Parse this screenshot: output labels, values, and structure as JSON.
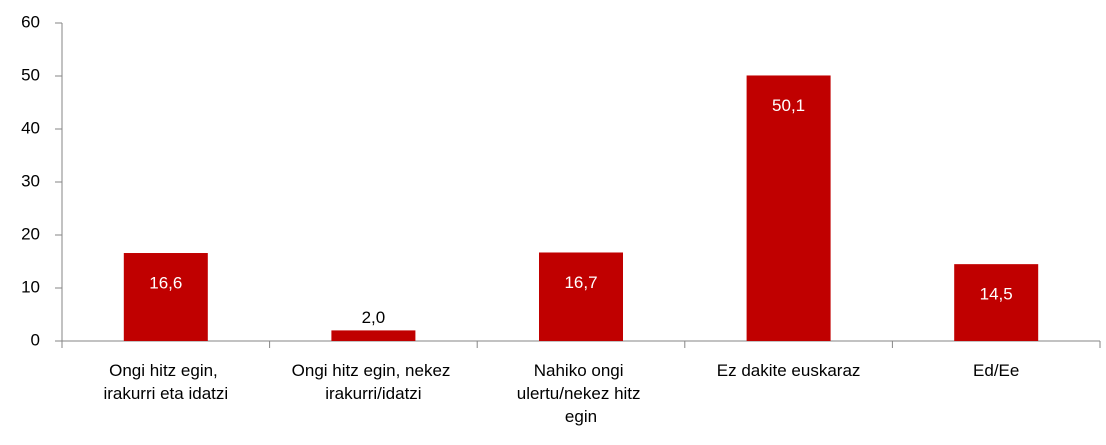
{
  "chart_data": {
    "type": "bar",
    "categories": [
      "Ongi hitz egin, irakurri eta idatzi",
      "Ongi hitz egin, nekez irakurri/idatzi",
      "Nahiko ongi ulertu/nekez hitz egin",
      "Ez dakite euskaraz",
      "Ed/Ee"
    ],
    "values": [
      16.6,
      2.0,
      16.7,
      50.1,
      14.5
    ],
    "value_labels": [
      "16,6",
      "2,0",
      "16,7",
      "50,1",
      "14,5"
    ],
    "color": "#c00000",
    "ylim": [
      0,
      60
    ],
    "yticks": [
      0,
      10,
      20,
      30,
      40,
      50,
      60
    ],
    "grid": false
  }
}
